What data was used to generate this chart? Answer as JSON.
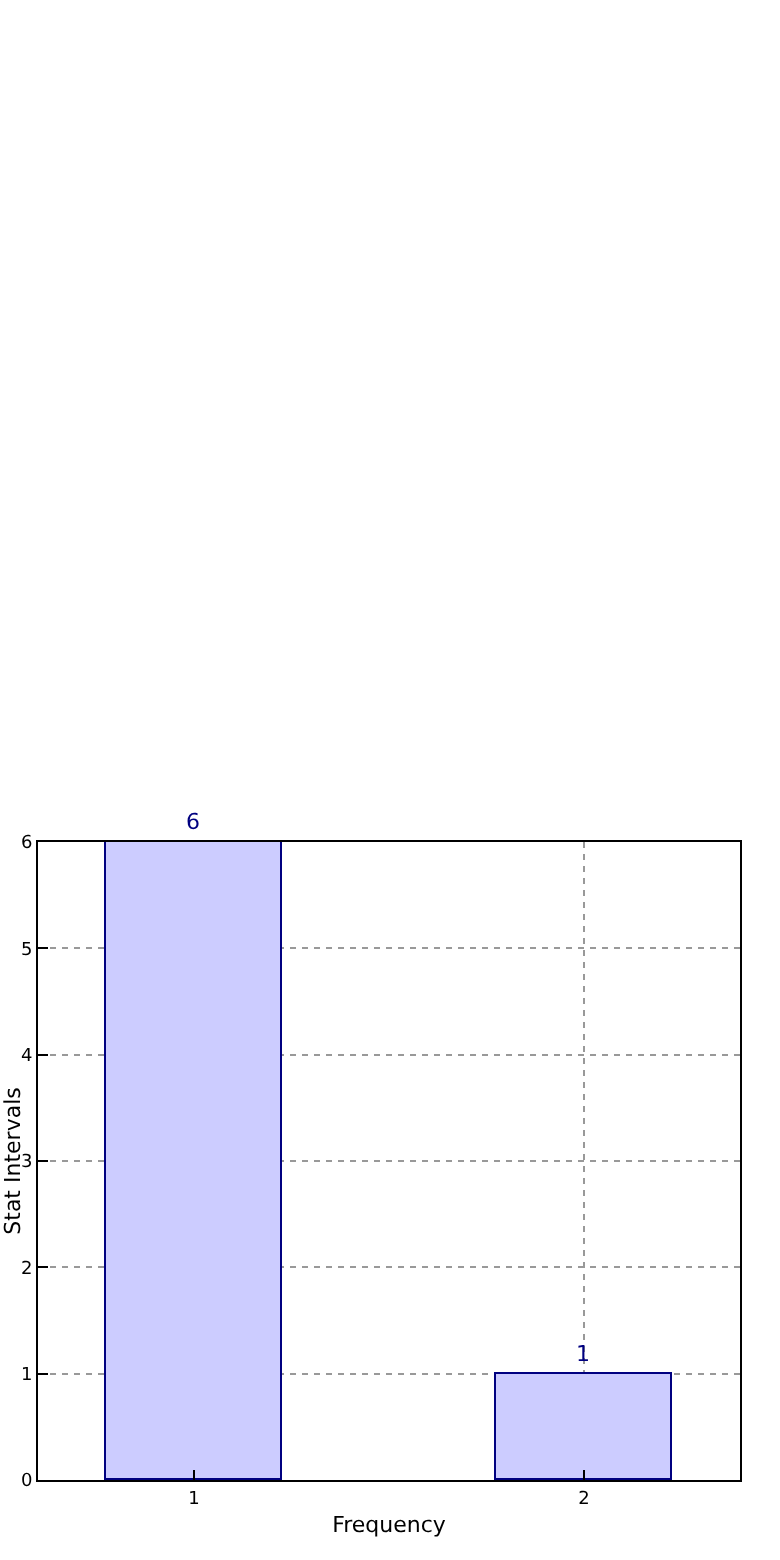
{
  "chart_data": {
    "type": "bar",
    "xlabel": "Frequency",
    "ylabel": "Stat Intervals",
    "x": [
      1,
      2
    ],
    "series": [
      {
        "color": "#ccccff",
        "values": [
          6,
          1
        ]
      }
    ],
    "xlim": [
      0.6,
      2.4
    ],
    "xticks": [
      1,
      2
    ],
    "ylim": [
      0,
      6
    ],
    "yticks": [
      0,
      1,
      2,
      3,
      4,
      5,
      6
    ],
    "grid": true,
    "data_labels": true
  }
}
